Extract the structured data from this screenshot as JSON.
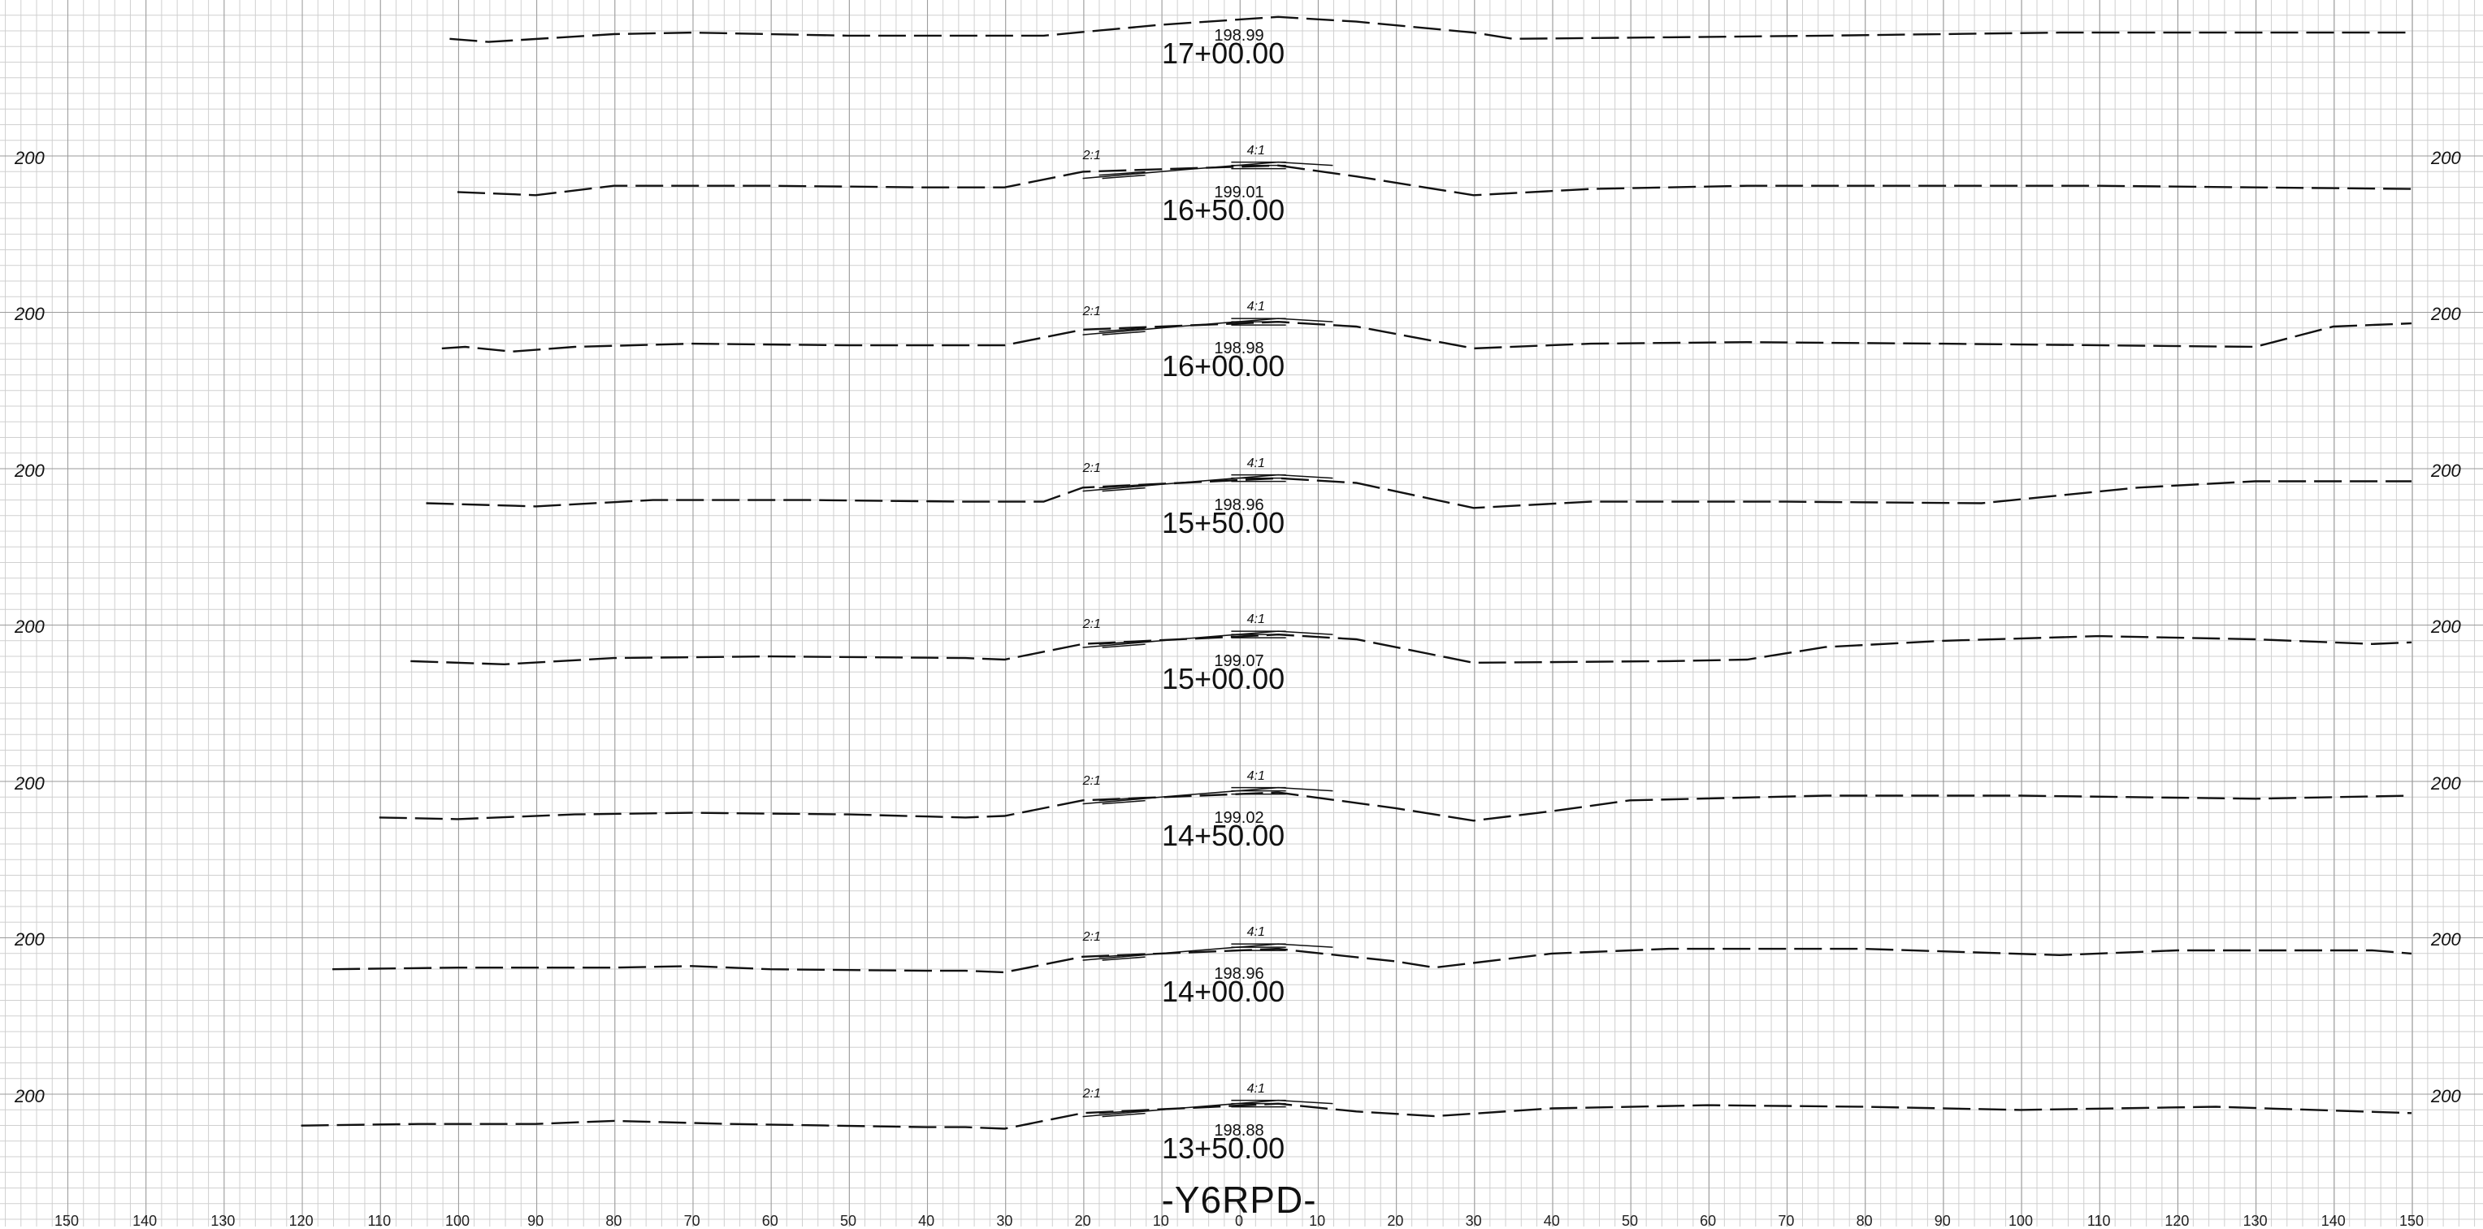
{
  "drawing_title": "-Y6RPD-",
  "elevation_label": "200",
  "slope_labels": {
    "left": "2:1",
    "right": "4:1"
  },
  "x_axis_ticks": [
    "150",
    "140",
    "130",
    "120",
    "110",
    "100",
    "90",
    "80",
    "70",
    "60",
    "50",
    "40",
    "30",
    "20",
    "10",
    "0",
    "10",
    "20",
    "30",
    "40",
    "50",
    "60",
    "70",
    "80",
    "90",
    "100",
    "110",
    "120",
    "130",
    "140",
    "150"
  ],
  "cross_sections": [
    {
      "station": "17+00.00",
      "grade_elevation": "198.99",
      "has_template": false
    },
    {
      "station": "16+50.00",
      "grade_elevation": "199.01",
      "has_template": true
    },
    {
      "station": "16+00.00",
      "grade_elevation": "198.98",
      "has_template": true
    },
    {
      "station": "15+50.00",
      "grade_elevation": "198.96",
      "has_template": true
    },
    {
      "station": "15+00.00",
      "grade_elevation": "199.07",
      "has_template": true
    },
    {
      "station": "14+50.00",
      "grade_elevation": "199.02",
      "has_template": true
    },
    {
      "station": "14+00.00",
      "grade_elevation": "198.96",
      "has_template": true
    },
    {
      "station": "13+50.00",
      "grade_elevation": "198.88",
      "has_template": true
    }
  ],
  "ground_profiles_offset_vs_delta_elev": [
    [
      [
        -101,
        -0.3
      ],
      [
        -96,
        -0.5
      ],
      [
        -80,
        0
      ],
      [
        -70,
        0.1
      ],
      [
        -50,
        -0.1
      ],
      [
        -30,
        -0.1
      ],
      [
        -25,
        -0.1
      ],
      [
        -10,
        0.6
      ],
      [
        5,
        1.1
      ],
      [
        15,
        0.8
      ],
      [
        30,
        0.1
      ],
      [
        35,
        -0.3
      ],
      [
        55,
        -0.2
      ],
      [
        75,
        -0.1
      ],
      [
        105,
        0.1
      ],
      [
        150,
        0.1
      ]
    ],
    [
      [
        -100,
        -0.1
      ],
      [
        -90,
        -0.3
      ],
      [
        -80,
        0.3
      ],
      [
        -60,
        0.3
      ],
      [
        -40,
        0.2
      ],
      [
        -30,
        0.2
      ],
      [
        -20,
        1.2
      ],
      [
        5,
        1.6
      ],
      [
        15,
        0.9
      ],
      [
        30,
        -0.3
      ],
      [
        45,
        0.1
      ],
      [
        65,
        0.3
      ],
      [
        90,
        0.3
      ],
      [
        110,
        0.3
      ],
      [
        130,
        0.2
      ],
      [
        150,
        0.1
      ]
    ],
    [
      [
        -102,
        -0.1
      ],
      [
        -99,
        0
      ],
      [
        -93,
        -0.3
      ],
      [
        -85,
        0
      ],
      [
        -70,
        0.2
      ],
      [
        -50,
        0.1
      ],
      [
        -30,
        0.1
      ],
      [
        -20,
        1.1
      ],
      [
        5,
        1.6
      ],
      [
        15,
        1.3
      ],
      [
        30,
        -0.1
      ],
      [
        45,
        0.2
      ],
      [
        65,
        0.3
      ],
      [
        90,
        0.2
      ],
      [
        130,
        0
      ],
      [
        140,
        1.3
      ],
      [
        150,
        1.5
      ]
    ],
    [
      [
        -104,
        0
      ],
      [
        -90,
        -0.2
      ],
      [
        -75,
        0.2
      ],
      [
        -55,
        0.2
      ],
      [
        -35,
        0.1
      ],
      [
        -25,
        0.1
      ],
      [
        -20,
        1
      ],
      [
        5,
        1.6
      ],
      [
        15,
        1.3
      ],
      [
        30,
        -0.3
      ],
      [
        45,
        0.1
      ],
      [
        70,
        0.1
      ],
      [
        95,
        0
      ],
      [
        115,
        1
      ],
      [
        130,
        1.4
      ],
      [
        150,
        1.4
      ]
    ],
    [
      [
        -106,
        -0.1
      ],
      [
        -94,
        -0.3
      ],
      [
        -80,
        0.1
      ],
      [
        -60,
        0.2
      ],
      [
        -35,
        0.1
      ],
      [
        -30,
        0
      ],
      [
        -20,
        1
      ],
      [
        5,
        1.6
      ],
      [
        15,
        1.3
      ],
      [
        30,
        -0.2
      ],
      [
        55,
        -0.1
      ],
      [
        65,
        0
      ],
      [
        75,
        0.8
      ],
      [
        90,
        1.2
      ],
      [
        110,
        1.5
      ],
      [
        130,
        1.3
      ],
      [
        145,
        1
      ],
      [
        150,
        1.1
      ]
    ],
    [
      [
        -110,
        -0.1
      ],
      [
        -100,
        -0.2
      ],
      [
        -85,
        0.1
      ],
      [
        -70,
        0.2
      ],
      [
        -50,
        0.1
      ],
      [
        -35,
        -0.1
      ],
      [
        -30,
        0
      ],
      [
        -20,
        1
      ],
      [
        5,
        1.5
      ],
      [
        20,
        0.5
      ],
      [
        30,
        -0.3
      ],
      [
        40,
        0.3
      ],
      [
        50,
        1
      ],
      [
        75,
        1.3
      ],
      [
        100,
        1.3
      ],
      [
        130,
        1.1
      ],
      [
        150,
        1.3
      ]
    ],
    [
      [
        -116,
        0.2
      ],
      [
        -100,
        0.3
      ],
      [
        -80,
        0.3
      ],
      [
        -70,
        0.4
      ],
      [
        -60,
        0.2
      ],
      [
        -40,
        0.1
      ],
      [
        -35,
        0.1
      ],
      [
        -30,
        0
      ],
      [
        -20,
        1
      ],
      [
        5,
        1.5
      ],
      [
        20,
        0.7
      ],
      [
        25,
        0.3
      ],
      [
        40,
        1.2
      ],
      [
        55,
        1.5
      ],
      [
        80,
        1.5
      ],
      [
        105,
        1.1
      ],
      [
        120,
        1.4
      ],
      [
        145,
        1.4
      ],
      [
        150,
        1.2
      ]
    ],
    [
      [
        -120,
        0.2
      ],
      [
        -105,
        0.3
      ],
      [
        -90,
        0.3
      ],
      [
        -80,
        0.5
      ],
      [
        -65,
        0.3
      ],
      [
        -40,
        0.1
      ],
      [
        -35,
        0.1
      ],
      [
        -30,
        0
      ],
      [
        -20,
        1
      ],
      [
        5,
        1.6
      ],
      [
        15,
        1.1
      ],
      [
        25,
        0.8
      ],
      [
        40,
        1.3
      ],
      [
        60,
        1.5
      ],
      [
        80,
        1.4
      ],
      [
        100,
        1.2
      ],
      [
        125,
        1.4
      ],
      [
        150,
        1
      ]
    ]
  ]
}
